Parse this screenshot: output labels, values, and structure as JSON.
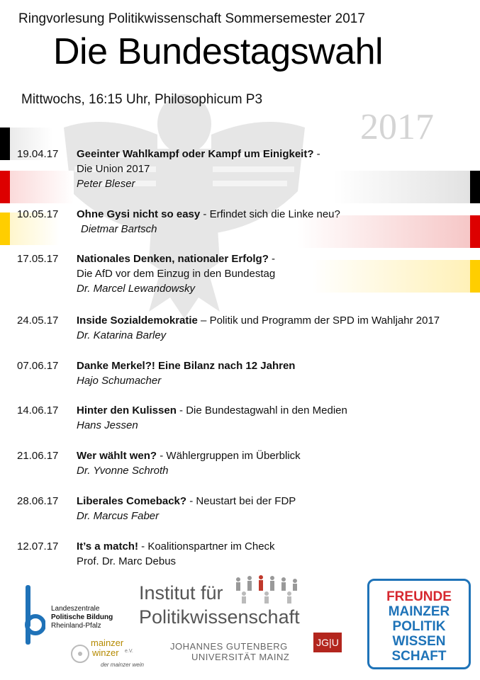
{
  "header": {
    "series": "Ringvorlesung Politikwissenschaft Sommersemester 2017",
    "title": "Die Bundestagswahl",
    "when": "Mittwochs, 16:15 Uhr, Philosophicum P3",
    "year": "2017"
  },
  "colors": {
    "black": "#000000",
    "red": "#dd0000",
    "gold": "#ffce00",
    "eagle": "#e4e4e4"
  },
  "program": [
    {
      "date": "19.04.17",
      "title": "Geeinter Wahlkampf oder Kampf um Einigkeit?",
      "sep": " -",
      "rest": "",
      "line2": "Die Union 2017",
      "speaker": "Peter Bleser"
    },
    {
      "date": "10.05.17",
      "title": "Ohne Gysi nicht so easy",
      "sep": " -  ",
      "rest": "Erfindet sich die Linke neu?",
      "line2": "",
      "speaker": "Dietmar Bartsch"
    },
    {
      "date": "17.05.17",
      "title": "Nationales Denken, nationaler Erfolg?",
      "sep": " -",
      "rest": "",
      "line2": "Die AfD vor dem Einzug in den Bundestag",
      "speaker": "Dr. Marcel Lewandowsky"
    },
    {
      "date": "24.05.17",
      "title": "Inside Sozialdemokratie",
      "sep": " – ",
      "rest": "Politik und Programm der SPD im Wahljahr 2017",
      "line2": "",
      "speaker": "Dr. Katarina Barley"
    },
    {
      "date": "07.06.17",
      "title": "Danke Merkel?! Eine Bilanz nach 12 Jahren",
      "sep": "",
      "rest": "",
      "line2": "",
      "speaker": "Hajo Schumacher"
    },
    {
      "date": "14.06.17",
      "title": "Hinter den Kulissen",
      "sep": " - ",
      "rest": "Die Bundestagwahl in den Medien",
      "line2": "",
      "speaker": "Hans Jessen"
    },
    {
      "date": "21.06.17",
      "title": "Wer wählt wen?",
      "sep": " - ",
      "rest": "Wählergruppen im Überblick",
      "line2": "",
      "speaker": "Dr. Yvonne Schroth"
    },
    {
      "date": "28.06.17",
      "title": "Liberales Comeback?",
      "sep": " - ",
      "rest": "Neustart bei der FDP",
      "line2": "",
      "speaker": "Dr. Marcus Faber"
    },
    {
      "date": "12.07.17",
      "title": "It’s a match!",
      "sep": " - ",
      "rest": "Koalitionspartner im Check",
      "line2": "",
      "speaker": "Prof. Dr. Marc Debus"
    }
  ],
  "logos": {
    "landeszentrale": [
      "Landeszentrale",
      "Politische Bildung",
      "Rheinland-Pfalz"
    ],
    "institut": [
      "Institut für",
      "Politikwissenschaft"
    ],
    "winzer": [
      "mainzer",
      "winzer",
      "e.V.",
      "der mainzer wein"
    ],
    "jgu_top": "JOHANNES GUTENBERG",
    "jgu_bottom": "UNIVERSITÄT MAINZ",
    "jgu_box": "JG|U",
    "freunde": [
      "FREUNDE",
      "MAINZER",
      "POLITIK",
      "WISSEN",
      "SCHAFT"
    ]
  }
}
